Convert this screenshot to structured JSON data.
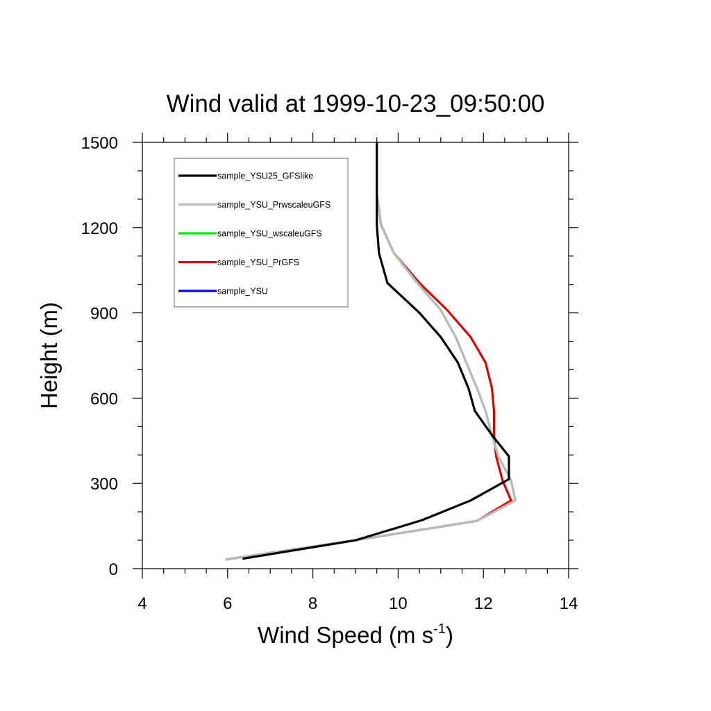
{
  "chart_data": {
    "type": "line",
    "title": "Wind valid at 1999-10-23_09:50:00",
    "xlabel": "Wind Speed (m s",
    "xlabel_sup": "-1",
    "xlabel_end": ")",
    "ylabel": "Height (m)",
    "xlim": [
      4,
      14
    ],
    "ylim": [
      0,
      1500
    ],
    "xticks": [
      "4",
      "6",
      "8",
      "10",
      "12",
      "14"
    ],
    "yticks": [
      "0",
      "300",
      "600",
      "900",
      "1200",
      "1500"
    ],
    "legend_position": "top-left",
    "series": [
      {
        "name": "sample_YSU25_GFSlike",
        "color": "#000000",
        "points": [
          [
            6.35,
            35
          ],
          [
            9.0,
            100
          ],
          [
            10.55,
            170
          ],
          [
            11.7,
            240
          ],
          [
            12.6,
            315
          ],
          [
            12.6,
            395
          ],
          [
            12.2,
            470
          ],
          [
            11.8,
            555
          ],
          [
            11.65,
            635
          ],
          [
            11.4,
            725
          ],
          [
            11.0,
            815
          ],
          [
            10.5,
            900
          ],
          [
            9.75,
            1005
          ],
          [
            9.55,
            1110
          ],
          [
            9.5,
            1210
          ],
          [
            9.5,
            1300
          ],
          [
            9.5,
            1500
          ]
        ]
      },
      {
        "name": "sample_YSU_PrwscaleuGFS",
        "color": "#bbbbbb",
        "points": [
          [
            5.95,
            32
          ],
          [
            9.0,
            100
          ],
          [
            11.85,
            168
          ],
          [
            12.75,
            240
          ],
          [
            12.65,
            310
          ],
          [
            12.35,
            395
          ],
          [
            12.2,
            470
          ],
          [
            12.05,
            555
          ],
          [
            11.85,
            635
          ],
          [
            11.6,
            725
          ],
          [
            11.35,
            815
          ],
          [
            11.0,
            910
          ],
          [
            10.45,
            1005
          ],
          [
            9.9,
            1110
          ],
          [
            9.6,
            1210
          ],
          [
            9.5,
            1320
          ]
        ]
      },
      {
        "name": "sample_YSU_wscaleuGFS",
        "color": "#00ee00",
        "points": [
          [
            5.95,
            32
          ],
          [
            9.0,
            100
          ],
          [
            11.85,
            168
          ],
          [
            12.75,
            240
          ],
          [
            12.65,
            310
          ],
          [
            12.35,
            395
          ],
          [
            12.2,
            470
          ],
          [
            12.05,
            555
          ],
          [
            11.85,
            635
          ],
          [
            11.6,
            725
          ],
          [
            11.35,
            815
          ],
          [
            11.0,
            910
          ],
          [
            10.45,
            1005
          ],
          [
            9.9,
            1110
          ],
          [
            9.6,
            1210
          ],
          [
            9.5,
            1320
          ]
        ]
      },
      {
        "name": "sample_YSU_PrGFS",
        "color": "#dd0000",
        "points": [
          [
            5.95,
            32
          ],
          [
            9.0,
            100
          ],
          [
            11.85,
            168
          ],
          [
            12.65,
            240
          ],
          [
            12.45,
            310
          ],
          [
            12.3,
            395
          ],
          [
            12.25,
            470
          ],
          [
            12.25,
            555
          ],
          [
            12.2,
            635
          ],
          [
            12.05,
            725
          ],
          [
            11.7,
            815
          ],
          [
            11.15,
            910
          ],
          [
            10.5,
            1005
          ],
          [
            9.9,
            1110
          ],
          [
            9.6,
            1210
          ],
          [
            9.5,
            1320
          ]
        ]
      },
      {
        "name": "sample_YSU",
        "color": "#0000cc",
        "points": []
      }
    ]
  }
}
